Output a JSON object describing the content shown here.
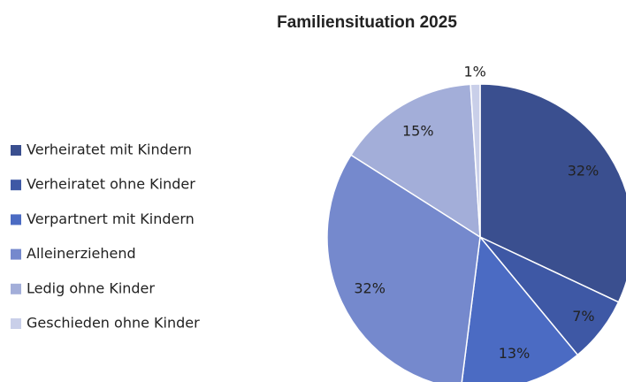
{
  "chart_data": {
    "type": "pie",
    "title": "Familiensituation 2025",
    "categories": [
      "Verheiratet mit Kindern",
      "Verheiratet ohne Kinder",
      "Verpartnert mit Kindern",
      "Alleinerziehend",
      "Ledig ohne Kinder",
      "Geschieden ohne Kinder"
    ],
    "values": [
      32,
      7,
      13,
      32,
      15,
      1
    ],
    "value_labels": [
      "32%",
      "7%",
      "13%",
      "32%",
      "15%",
      "1%"
    ],
    "colors": [
      "#3a4f8f",
      "#3e58a5",
      "#4b6bc3",
      "#7589cd",
      "#a3aed9",
      "#c9cfe9"
    ],
    "legend": "left"
  }
}
